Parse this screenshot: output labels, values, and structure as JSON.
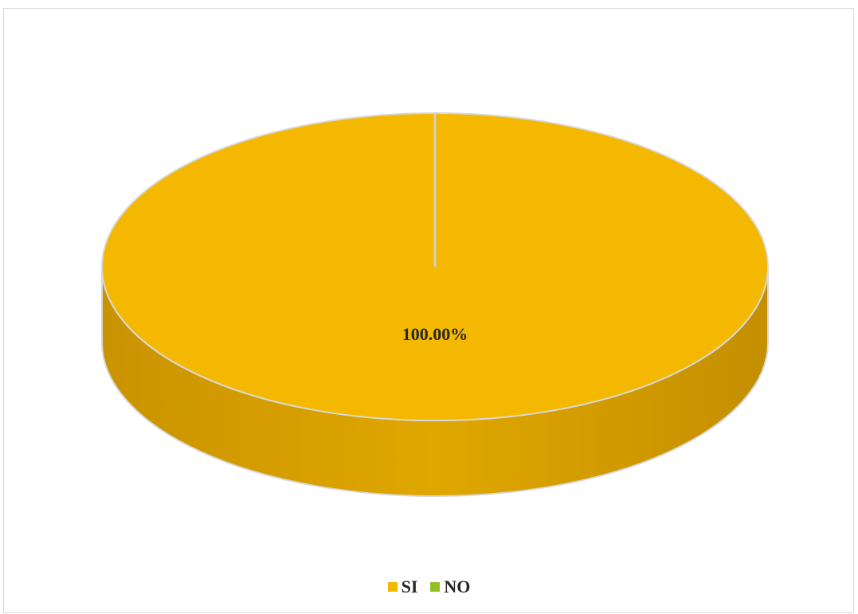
{
  "chart_data": {
    "type": "pie",
    "three_d": true,
    "categories": [
      "SI",
      "NO"
    ],
    "values": [
      100.0,
      0.0
    ],
    "data_labels": [
      "100.00%",
      ""
    ],
    "colors": {
      "SI": "#f4b800",
      "NO": "#92c027"
    },
    "title": "",
    "legend": "bottom-center"
  }
}
